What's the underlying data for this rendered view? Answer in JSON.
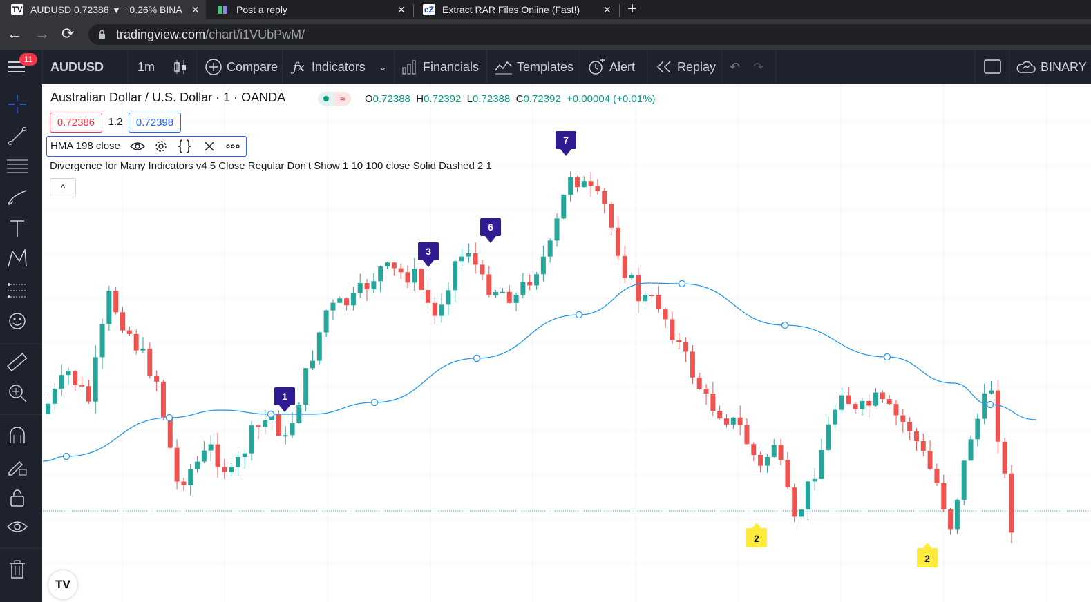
{
  "browser": {
    "tabs": [
      {
        "title": "AUDUSD 0.72388 ▼ −0.26% BINA",
        "favicon": "TV",
        "active": true
      },
      {
        "title": "Post a reply",
        "favicon": "forum-icon",
        "active": false
      },
      {
        "title": "Extract RAR Files Online (Fast!)",
        "favicon": "eZ",
        "active": false
      }
    ],
    "url_host": "tradingview.com",
    "url_path": "/chart/i1VUbPwM/"
  },
  "toolbar": {
    "notification_count": "11",
    "symbol": "AUDUSD",
    "interval": "1m",
    "compare": "Compare",
    "indicators": "Indicators",
    "financials": "Financials",
    "templates": "Templates",
    "alert": "Alert",
    "replay": "Replay",
    "broker": "BINARY"
  },
  "legend": {
    "title": "Australian Dollar / U.S. Dollar · 1 · OANDA",
    "status_wave": "≈",
    "ohlc": [
      {
        "k": "O",
        "v": "0.72388"
      },
      {
        "k": "H",
        "v": "0.72392"
      },
      {
        "k": "L",
        "v": "0.72388"
      },
      {
        "k": "C",
        "v": "0.72392"
      }
    ],
    "change": "+0.00004 (+0.01%)",
    "bid": "0.72386",
    "spread": "1.2",
    "ask": "0.72398",
    "hma_label": "HMA 198 close",
    "divergence_label": "Divergence for Many Indicators v4 5 Close Regular Don't Show 1 10 100 close Solid Dashed 2 1",
    "collapse_glyph": "^"
  },
  "chart_data": {
    "type": "candlestick",
    "last_price_line": "dotted",
    "colors": {
      "up": "#26a69a",
      "down": "#ef5350",
      "hma": "#2196f3",
      "bear_marker": "#311b92",
      "bull_marker": "#ffeb3b"
    },
    "bearish_markers": [
      {
        "label": "1"
      },
      {
        "label": "3"
      },
      {
        "label": "6"
      },
      {
        "label": "7"
      }
    ],
    "bullish_markers": [
      {
        "label": "2"
      },
      {
        "label": "2"
      }
    ]
  },
  "logo": "TV"
}
